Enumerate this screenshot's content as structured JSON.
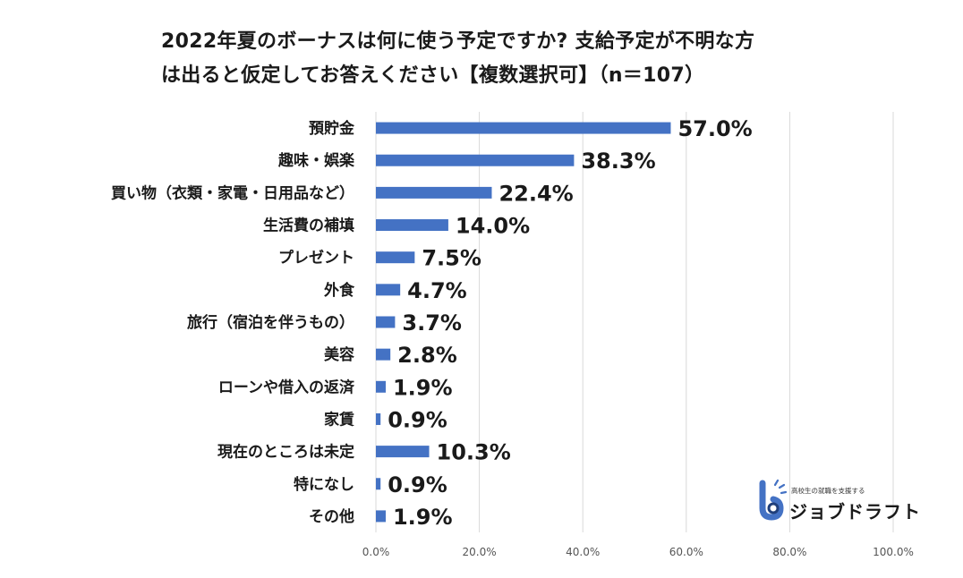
{
  "title": {
    "line1": "2022年夏のボーナスは何に使う予定ですか? 支給予定が不明な方",
    "line2": "は出ると仮定してお答えください【複数選択可】（n＝107）"
  },
  "logo": {
    "tagline": "高校生の就職を支援する",
    "name": "ジョブドラフト"
  },
  "colors": {
    "bar": "#4472C4",
    "grid": "#d9d9d9",
    "text": "#1a1a1a"
  },
  "chart_data": {
    "type": "bar",
    "orientation": "horizontal",
    "categories": [
      "預貯金",
      "趣味・娯楽",
      "買い物（衣類・家電・日用品など）",
      "生活費の補填",
      "プレゼント",
      "外食",
      "旅行（宿泊を伴うもの）",
      "美容",
      "ローンや借入の返済",
      "家賃",
      "現在のところは未定",
      "特になし",
      "その他"
    ],
    "values": [
      57.0,
      38.3,
      22.4,
      14.0,
      7.5,
      4.7,
      3.7,
      2.8,
      1.9,
      0.9,
      10.3,
      0.9,
      1.9
    ],
    "data_labels": [
      "57.0%",
      "38.3%",
      "22.4%",
      "14.0%",
      "7.5%",
      "4.7%",
      "3.7%",
      "2.8%",
      "1.9%",
      "0.9%",
      "10.3%",
      "0.9%",
      "1.9%"
    ],
    "xlim": [
      0,
      100
    ],
    "xticks": [
      0,
      20,
      40,
      60,
      80,
      100
    ],
    "xtick_labels": [
      "0.0%",
      "20.0%",
      "40.0%",
      "60.0%",
      "80.0%",
      "100.0%"
    ],
    "grid": true,
    "legend": false
  }
}
